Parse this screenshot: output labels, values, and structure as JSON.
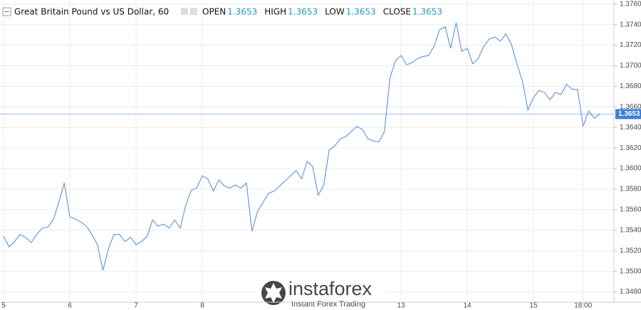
{
  "chart_data": {
    "type": "line",
    "title": "Great Britain Pound vs US Dollar, 60",
    "ohlc": [
      {
        "name": "OPEN",
        "value": "1.3653"
      },
      {
        "name": "HIGH",
        "value": "1.3653"
      },
      {
        "name": "LOW",
        "value": "1.3653"
      },
      {
        "name": "CLOSE",
        "value": "1.3653"
      }
    ],
    "last_price": 1.3653,
    "last_price_color": "#3d7fd6",
    "color": "#6c9ad8",
    "grid": true,
    "watermark": {
      "brand": "instaforex",
      "tagline": "Instant Forex Trading"
    },
    "categories": [
      "5",
      null,
      null,
      null,
      null,
      null,
      null,
      null,
      null,
      null,
      null,
      null,
      "6",
      null,
      null,
      null,
      null,
      null,
      null,
      null,
      null,
      null,
      null,
      null,
      "7",
      null,
      null,
      null,
      null,
      null,
      null,
      null,
      null,
      null,
      null,
      null,
      "8",
      null,
      null,
      null,
      null,
      null,
      null,
      null,
      null,
      null,
      null,
      null,
      null,
      null,
      null,
      null,
      null,
      null,
      null,
      null,
      null,
      null,
      null,
      null,
      null,
      null,
      null,
      null,
      null,
      null,
      null,
      null,
      null,
      null,
      null,
      null,
      "13",
      null,
      null,
      null,
      null,
      null,
      null,
      null,
      null,
      null,
      null,
      null,
      "14",
      null,
      null,
      null,
      null,
      null,
      null,
      null,
      null,
      null,
      null,
      null,
      "15",
      null,
      null,
      null,
      null,
      null,
      null,
      null,
      null,
      "18:00",
      null,
      null,
      null
    ],
    "values": [
      1.3534,
      1.3524,
      1.3529,
      1.3536,
      1.3533,
      1.3528,
      1.3536,
      1.3542,
      1.3543,
      1.355,
      1.3567,
      1.3586,
      1.3553,
      1.3551,
      1.3548,
      1.3544,
      1.3536,
      1.3526,
      1.3501,
      1.3522,
      1.3536,
      1.3536,
      1.3529,
      1.3533,
      1.3526,
      1.3529,
      1.3534,
      1.355,
      1.3544,
      1.3546,
      1.3542,
      1.355,
      1.3542,
      1.3564,
      1.3579,
      1.3581,
      1.3593,
      1.359,
      1.3578,
      1.3589,
      1.3583,
      1.3581,
      1.3584,
      1.3581,
      1.3586,
      1.3539,
      1.3558,
      1.3567,
      1.3576,
      1.3578,
      1.3583,
      1.3588,
      1.3593,
      1.3598,
      1.359,
      1.3607,
      1.3602,
      1.3574,
      1.3584,
      1.3618,
      1.3622,
      1.3629,
      1.3631,
      1.3636,
      1.3641,
      1.3638,
      1.3629,
      1.3627,
      1.3626,
      1.3636,
      1.3688,
      1.3705,
      1.371,
      1.3701,
      1.3703,
      1.3707,
      1.3709,
      1.371,
      1.3719,
      1.3735,
      1.3738,
      1.3717,
      1.3742,
      1.3714,
      1.3717,
      1.3702,
      1.3707,
      1.3719,
      1.3726,
      1.3728,
      1.3724,
      1.3731,
      1.3721,
      1.3702,
      1.3685,
      1.3657,
      1.3669,
      1.3676,
      1.3674,
      1.3667,
      1.3674,
      1.3672,
      1.3682,
      1.3677,
      1.3677,
      1.3641,
      1.3656,
      1.3649,
      1.3653
    ],
    "ylim": [
      1.347,
      1.3764
    ],
    "yticks": [
      {
        "value": 1.348,
        "label": "1.3480"
      },
      {
        "value": 1.35,
        "label": "1.3500"
      },
      {
        "value": 1.352,
        "label": "1.3520"
      },
      {
        "value": 1.354,
        "label": "1.3540"
      },
      {
        "value": 1.356,
        "label": "1.3560"
      },
      {
        "value": 1.358,
        "label": "1.3580"
      },
      {
        "value": 1.36,
        "label": "1.3600"
      },
      {
        "value": 1.362,
        "label": "1.3620"
      },
      {
        "value": 1.364,
        "label": "1.3640"
      },
      {
        "value": 1.366,
        "label": "1.3660"
      },
      {
        "value": 1.368,
        "label": "1.3680"
      },
      {
        "value": 1.37,
        "label": "1.3700"
      },
      {
        "value": 1.372,
        "label": "1.3720"
      },
      {
        "value": 1.374,
        "label": "1.3740"
      },
      {
        "value": 1.376,
        "label": "1.3760"
      }
    ]
  }
}
